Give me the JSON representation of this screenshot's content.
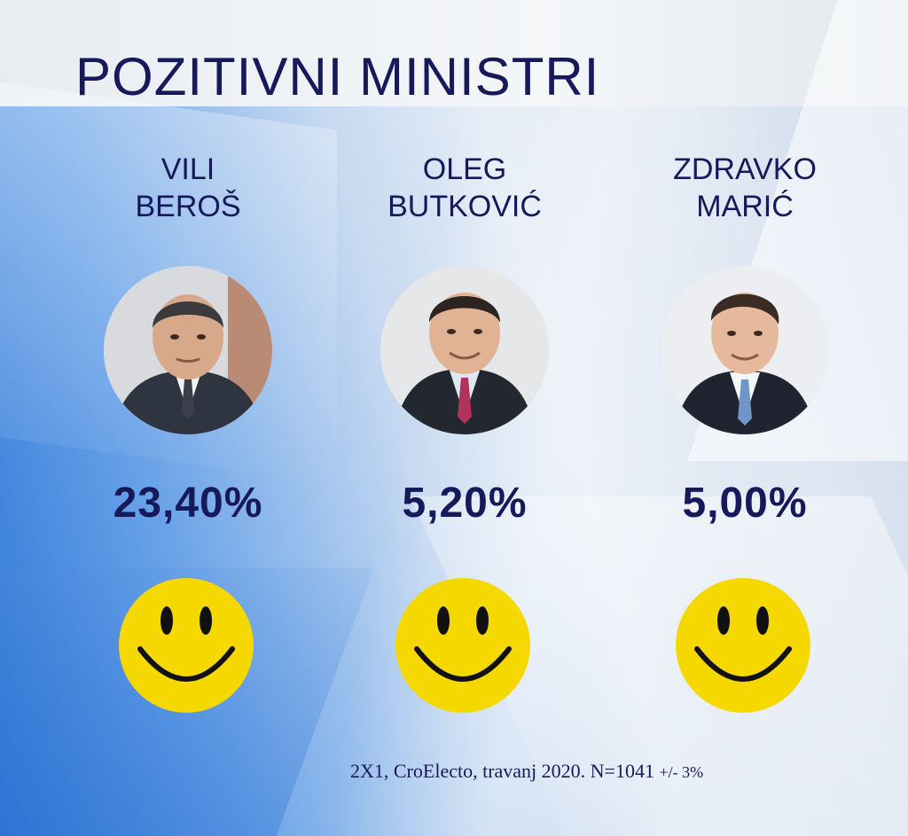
{
  "title": "POZITIVNI MINISTRI",
  "ministers": [
    {
      "first_name": "VILI",
      "last_name": "BEROŠ",
      "percent": "23,40%"
    },
    {
      "first_name": "OLEG",
      "last_name": "BUTKOVIĆ",
      "percent": "5,20%"
    },
    {
      "first_name": "ZDRAVKO",
      "last_name": "MARIĆ",
      "percent": "5,00%"
    }
  ],
  "footnote": {
    "main": "2X1, CroElecto, travanj 2020. N=1041",
    "margin": "+/- 3%"
  },
  "colors": {
    "text": "#16195a",
    "smiley": "#f5d800",
    "background_accent": "#2d76d6"
  },
  "icons": [
    "smiley-face-icon"
  ]
}
